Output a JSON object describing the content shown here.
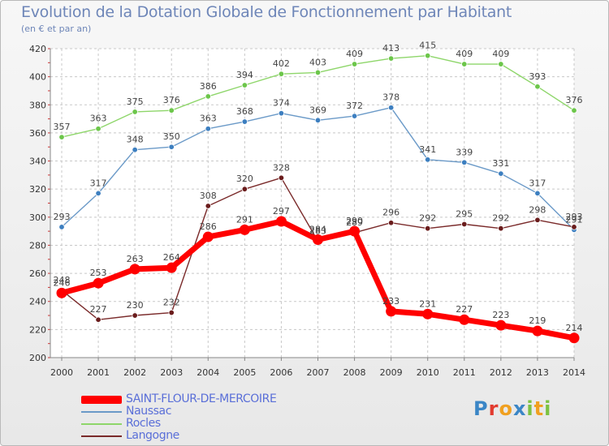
{
  "header": {
    "title": "Evolution de la Dotation Globale de Fonctionnement par Habitant",
    "subtitle": "(en € et par an)"
  },
  "logo": {
    "text": "Proxiti",
    "letters": [
      {
        "ch": "P",
        "color": "#3b86c6"
      },
      {
        "ch": "r",
        "color": "#e23b2f"
      },
      {
        "ch": "o",
        "color": "#f0a020"
      },
      {
        "ch": "x",
        "color": "#3b86c6"
      },
      {
        "ch": "i",
        "color": "#7cc242"
      },
      {
        "ch": "t",
        "color": "#f0a020"
      },
      {
        "ch": "i",
        "color": "#7cc242"
      }
    ]
  },
  "chart_data": {
    "type": "line",
    "title": "Evolution de la Dotation Globale de Fonctionnement par Habitant",
    "subtitle": "(en € et par an)",
    "xlabel": "",
    "ylabel": "",
    "x": [
      "2000",
      "2001",
      "2002",
      "2003",
      "2004",
      "2005",
      "2006",
      "2007",
      "2008",
      "2009",
      "2010",
      "2011",
      "2012",
      "2013",
      "2014"
    ],
    "ylim": [
      200,
      420
    ],
    "yticks": [
      200,
      220,
      240,
      260,
      280,
      300,
      320,
      340,
      360,
      380,
      400,
      420
    ],
    "grid": true,
    "legend_position": "bottom",
    "series": [
      {
        "name": "SAINT-FLOUR-DE-MERCOIRE",
        "color": "#ff0000",
        "marker_color": "#ff0000",
        "highlight": true,
        "values": [
          246,
          253,
          263,
          264,
          286,
          291,
          297,
          284,
          290,
          233,
          231,
          227,
          223,
          219,
          214
        ]
      },
      {
        "name": "Naussac",
        "color": "#6b9ac8",
        "marker_color": "#3d7fc0",
        "values": [
          293,
          317,
          348,
          350,
          363,
          368,
          374,
          369,
          372,
          378,
          341,
          339,
          331,
          317,
          291
        ]
      },
      {
        "name": "Rocles",
        "color": "#8ed66a",
        "marker_color": "#6cc64a",
        "values": [
          357,
          363,
          375,
          376,
          386,
          394,
          402,
          403,
          409,
          413,
          415,
          409,
          409,
          393,
          376
        ]
      },
      {
        "name": "Langogne",
        "color": "#7a2a2a",
        "marker_color": "#6a1c1c",
        "values": [
          248,
          227,
          230,
          232,
          308,
          320,
          328,
          283,
          289,
          296,
          292,
          295,
          292,
          298,
          293
        ]
      }
    ]
  }
}
